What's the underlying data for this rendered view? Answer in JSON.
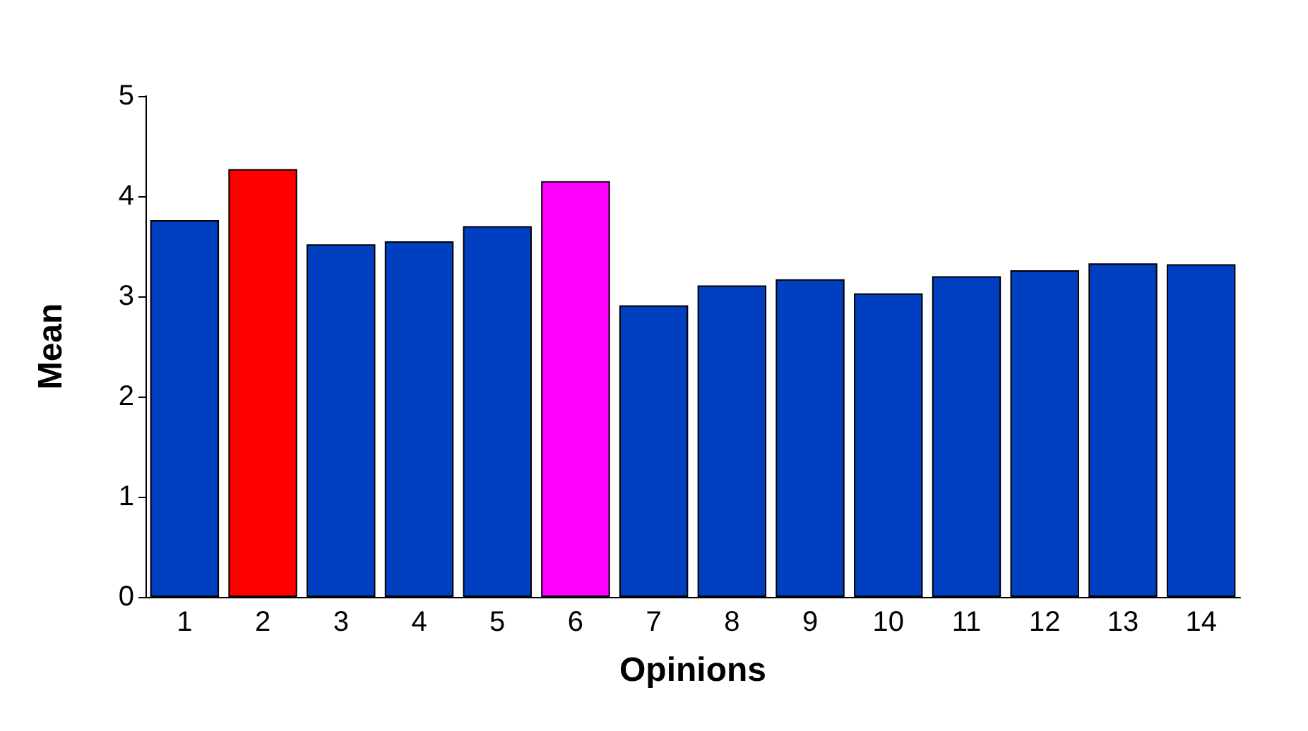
{
  "chart_data": {
    "type": "bar",
    "xlabel": "Opinions",
    "ylabel": "Mean",
    "categories": [
      "1",
      "2",
      "3",
      "4",
      "5",
      "6",
      "7",
      "8",
      "9",
      "10",
      "11",
      "12",
      "13",
      "14"
    ],
    "values": [
      3.76,
      4.27,
      3.52,
      3.55,
      3.7,
      4.15,
      2.91,
      3.11,
      3.17,
      3.03,
      3.2,
      3.26,
      3.33,
      3.32
    ],
    "colors": [
      "#0040c0",
      "#ff0000",
      "#0040c0",
      "#0040c0",
      "#0040c0",
      "#ff00ff",
      "#0040c0",
      "#0040c0",
      "#0040c0",
      "#0040c0",
      "#0040c0",
      "#0040c0",
      "#0040c0",
      "#0040c0"
    ],
    "ylim": [
      0,
      5
    ],
    "yticks": [
      0,
      1,
      2,
      3,
      4,
      5
    ],
    "grid": false
  }
}
